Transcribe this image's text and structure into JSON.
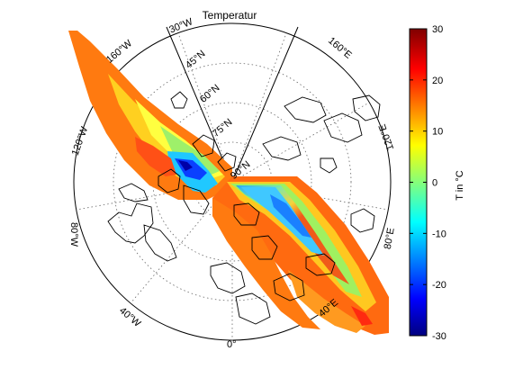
{
  "title": "Temperatur",
  "colorbar": {
    "label": "T in °C",
    "ticks": [
      "30",
      "20",
      "10",
      "0",
      "-10",
      "-20",
      "-30"
    ],
    "range": [
      -30,
      30
    ],
    "colormap": "jet",
    "colors": [
      "#00007f",
      "#0000ff",
      "#00ffff",
      "#ffff00",
      "#ff0000",
      "#7f0000"
    ]
  },
  "map": {
    "projection": "polar (north pole centered)",
    "graticule": "dotted",
    "latitude_labels": [
      "45°N",
      "60°N",
      "75°N",
      "90°N"
    ],
    "longitude_labels": [
      "30°W",
      "160°W",
      "120°W",
      "80°W",
      "40°W",
      "0°",
      "40°E",
      "80°E",
      "120°E",
      "160°E"
    ],
    "coastline_color": "#000000"
  }
}
